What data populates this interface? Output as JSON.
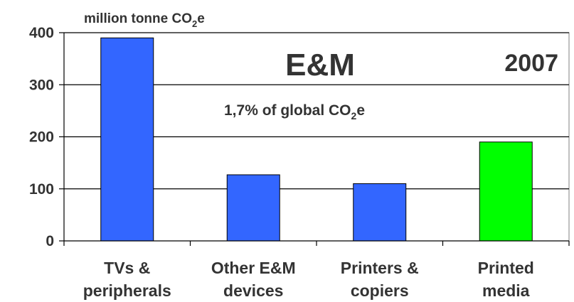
{
  "chart_data": {
    "type": "bar",
    "ylabel": "million tonne CO",
    "ylabel_sub": "2",
    "ylabel_tail": "e",
    "title": "E&M",
    "year": "2007",
    "annotation": "1,7% of global CO",
    "annotation_sub": "2",
    "annotation_tail": "e",
    "categories": [
      [
        "TVs &",
        "peripherals"
      ],
      [
        "Other E&M",
        "devices"
      ],
      [
        "Printers &",
        "copiers"
      ],
      [
        "Printed",
        "media"
      ]
    ],
    "values": [
      390,
      127,
      110,
      190
    ],
    "bar_colors": [
      "#3366ff",
      "#3366ff",
      "#3366ff",
      "#00ff00"
    ],
    "ylim": [
      0,
      400
    ],
    "yticks": [
      0,
      100,
      200,
      300,
      400
    ],
    "grid": true
  }
}
